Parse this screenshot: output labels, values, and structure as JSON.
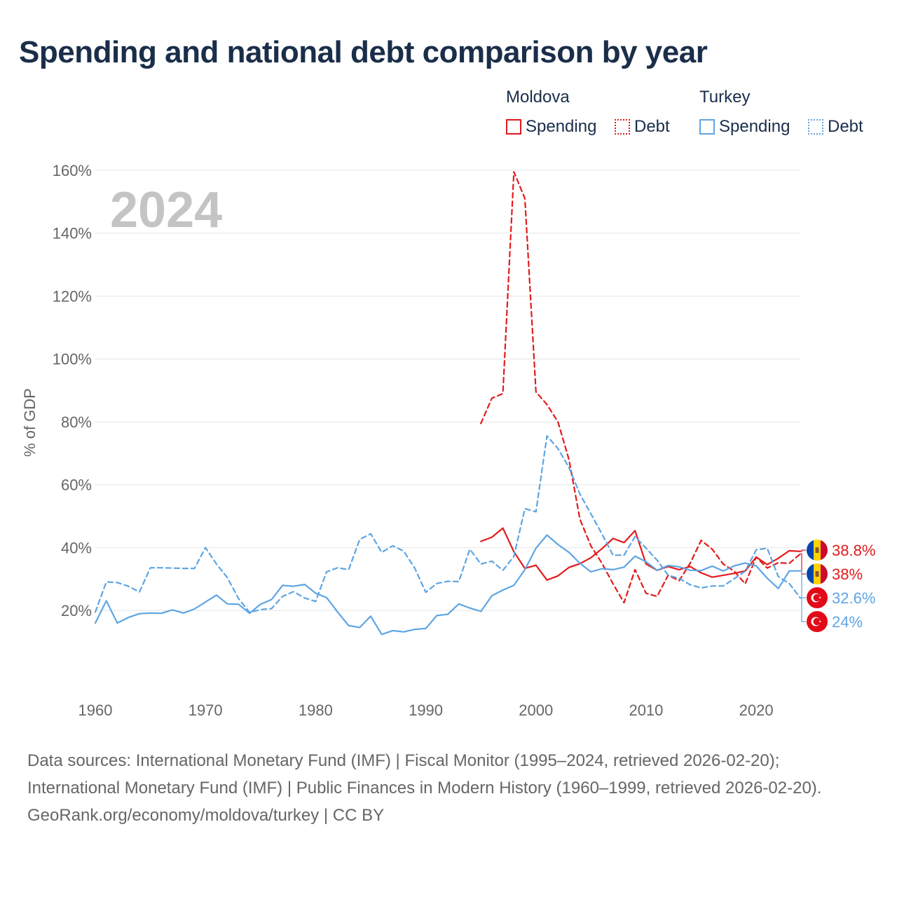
{
  "title": "Spending and national debt comparison by year",
  "legend": {
    "groups": [
      {
        "country": "Moldova",
        "color": "#e31a1c",
        "items": [
          {
            "label": "Spending",
            "style": "solid"
          },
          {
            "label": "Debt",
            "style": "dotted"
          }
        ]
      },
      {
        "country": "Turkey",
        "color": "#5ea5e3",
        "items": [
          {
            "label": "Spending",
            "style": "solid"
          },
          {
            "label": "Debt",
            "style": "dotted"
          }
        ]
      }
    ]
  },
  "footer": {
    "sources": "Data sources: International Monetary Fund (IMF) | Fiscal Monitor (1995–2024, retrieved 2026-02-20); International Monetary Fund (IMF) | Public Finances in Modern History (1960–1999, retrieved 2026-02-20).",
    "credit": "GeoRank.org/economy/moldova/turkey | CC BY"
  },
  "chart_data": {
    "type": "line",
    "title": "Spending and national debt comparison by year",
    "watermark_year": "2024",
    "xlabel": "",
    "ylabel": "% of GDP",
    "xlim": [
      1960,
      2024
    ],
    "ylim": [
      4,
      164
    ],
    "x_ticks": [
      1960,
      1970,
      1980,
      1990,
      2000,
      2010,
      2020
    ],
    "y_ticks": [
      20,
      40,
      60,
      80,
      100,
      120,
      140,
      160
    ],
    "y_tick_suffix": "%",
    "grid": true,
    "series": [
      {
        "name": "Moldova Spending",
        "country": "Moldova",
        "color": "#e31a1c",
        "dash": "solid",
        "x": [
          1995,
          1996,
          1997,
          1998,
          1999,
          2000,
          2001,
          2002,
          2003,
          2004,
          2005,
          2006,
          2007,
          2008,
          2009,
          2010,
          2011,
          2012,
          2013,
          2014,
          2015,
          2016,
          2017,
          2018,
          2019,
          2020,
          2021,
          2022,
          2023,
          2024
        ],
        "values": [
          42,
          43.3,
          46.2,
          38.7,
          33.4,
          34.4,
          29.7,
          31,
          33.7,
          34.9,
          36.8,
          39.7,
          42.9,
          41.6,
          45.4,
          34.8,
          32.8,
          34,
          33,
          34,
          32,
          30.6,
          31.2,
          31.8,
          32.6,
          37,
          34.6,
          36.6,
          39,
          38.8
        ]
      },
      {
        "name": "Moldova Debt",
        "country": "Moldova",
        "color": "#e31a1c",
        "dash": "dashed",
        "x": [
          1995,
          1996,
          1997,
          1998,
          1999,
          2000,
          2001,
          2002,
          2003,
          2004,
          2005,
          2006,
          2007,
          2008,
          2009,
          2010,
          2011,
          2012,
          2013,
          2014,
          2015,
          2016,
          2017,
          2018,
          2019,
          2020,
          2021,
          2022,
          2023,
          2024
        ],
        "values": [
          79.5,
          87.5,
          89,
          159.5,
          151,
          89.5,
          85.5,
          80,
          68,
          49,
          40.5,
          35,
          28.5,
          22.5,
          33,
          25.5,
          24.5,
          31.2,
          29.5,
          35,
          42.3,
          39.5,
          34.8,
          32.5,
          28.5,
          37,
          33.5,
          35.2,
          35,
          38
        ]
      },
      {
        "name": "Turkey Spending",
        "country": "Turkey",
        "color": "#5ea5e3",
        "dash": "solid",
        "x": [
          1960,
          1961,
          1962,
          1963,
          1964,
          1965,
          1966,
          1967,
          1968,
          1969,
          1970,
          1971,
          1972,
          1973,
          1974,
          1975,
          1976,
          1977,
          1978,
          1979,
          1980,
          1981,
          1982,
          1983,
          1984,
          1985,
          1986,
          1987,
          1988,
          1989,
          1990,
          1991,
          1992,
          1993,
          1994,
          1995,
          1996,
          1997,
          1998,
          1999,
          2000,
          2001,
          2002,
          2003,
          2004,
          2005,
          2006,
          2007,
          2008,
          2009,
          2010,
          2011,
          2012,
          2013,
          2014,
          2015,
          2016,
          2017,
          2018,
          2019,
          2020,
          2021,
          2022,
          2023,
          2024
        ],
        "values": [
          16,
          23.1,
          16,
          17.8,
          19,
          19.2,
          19.1,
          20.2,
          19.2,
          20.5,
          22.7,
          24.9,
          22.1,
          22,
          19.1,
          22,
          23.5,
          28,
          27.7,
          28.3,
          25.5,
          24.1,
          19.5,
          15.2,
          14.6,
          18.2,
          12.4,
          13.6,
          13.2,
          14,
          14.3,
          18.4,
          18.8,
          22.1,
          20.8,
          19.7,
          24.7,
          26.5,
          28,
          33,
          39.8,
          44,
          41,
          38.5,
          35,
          32.3,
          33.3,
          33,
          33.8,
          37.3,
          35.5,
          32.8,
          34.3,
          33.9,
          32.8,
          32.7,
          34.1,
          32.6,
          34.2,
          35.1,
          34.2,
          30.3,
          27,
          32.6,
          32.6
        ]
      },
      {
        "name": "Turkey Debt",
        "country": "Turkey",
        "color": "#5ea5e3",
        "dash": "dashed",
        "x": [
          1960,
          1961,
          1962,
          1963,
          1964,
          1965,
          1966,
          1967,
          1968,
          1969,
          1970,
          1971,
          1972,
          1973,
          1974,
          1975,
          1976,
          1977,
          1978,
          1979,
          1980,
          1981,
          1982,
          1983,
          1984,
          1985,
          1986,
          1987,
          1988,
          1989,
          1990,
          1991,
          1992,
          1993,
          1994,
          1995,
          1996,
          1997,
          1998,
          1999,
          2000,
          2001,
          2002,
          2003,
          2004,
          2005,
          2006,
          2007,
          2008,
          2009,
          2010,
          2011,
          2012,
          2013,
          2014,
          2015,
          2016,
          2017,
          2018,
          2019,
          2020,
          2021,
          2022,
          2023,
          2024
        ],
        "values": [
          19.5,
          29.1,
          28.9,
          27.7,
          25.9,
          33.6,
          33.6,
          33.5,
          33.4,
          33.4,
          40,
          34.8,
          30.4,
          23.8,
          19.4,
          20.3,
          20.6,
          24.5,
          26,
          24,
          22.9,
          32.3,
          33.6,
          33,
          42.6,
          44.4,
          38.5,
          40.6,
          38.9,
          33.5,
          25.8,
          28.6,
          29.3,
          29.2,
          39.5,
          34.8,
          35.7,
          32.8,
          37.2,
          52.4,
          51.4,
          75.5,
          71.5,
          65.5,
          57,
          50.7,
          44.3,
          37.6,
          37.6,
          43.5,
          39.8,
          36,
          31.2,
          30.2,
          28.2,
          27.2,
          27.8,
          27.8,
          30.1,
          32.5,
          39.3,
          39.8,
          30.8,
          28.6,
          24
        ]
      }
    ],
    "end_labels": [
      {
        "series": "Moldova Spending",
        "text": "38.8%",
        "country": "Moldova"
      },
      {
        "series": "Moldova Debt",
        "text": "38%",
        "country": "Moldova"
      },
      {
        "series": "Turkey Spending",
        "text": "32.6%",
        "country": "Turkey"
      },
      {
        "series": "Turkey Debt",
        "text": "24%",
        "country": "Turkey"
      }
    ]
  }
}
